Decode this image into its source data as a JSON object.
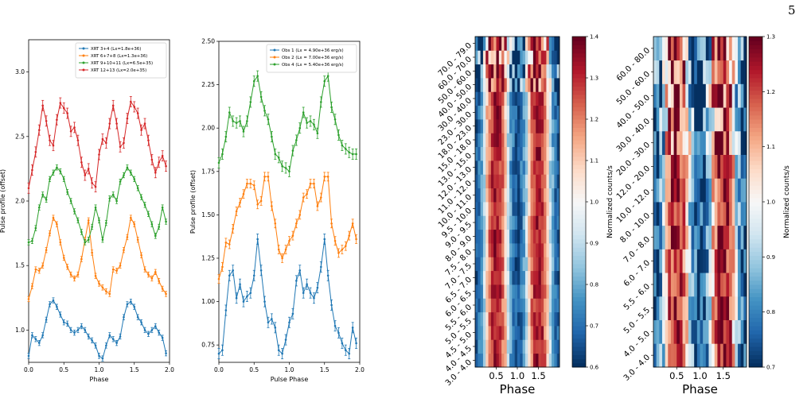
{
  "page": {
    "number": "5"
  },
  "colors": {
    "c1": "#1f77b4",
    "c2": "#ff7f0e",
    "c3": "#2ca02c",
    "c4": "#d62728"
  },
  "chart_data": [
    {
      "type": "line",
      "xlabel": "Phase",
      "ylabel": "Pulse profile (offset)",
      "xlim": [
        0.0,
        2.0
      ],
      "ylim": [
        0.75,
        3.25
      ],
      "xticks": [
        "0.0",
        "0.5",
        "1.0",
        "1.5",
        "2.0"
      ],
      "yticks": [
        "1.0",
        "1.5",
        "2.0",
        "2.5",
        "3.0"
      ],
      "legend_position": "top-right",
      "x": [
        0.0,
        0.05,
        0.1,
        0.15,
        0.2,
        0.25,
        0.3,
        0.35,
        0.4,
        0.45,
        0.5,
        0.55,
        0.6,
        0.65,
        0.7,
        0.75,
        0.8,
        0.85,
        0.9,
        0.95,
        1.0,
        1.05,
        1.1,
        1.15,
        1.2,
        1.25,
        1.3,
        1.35,
        1.4,
        1.45,
        1.5,
        1.55,
        1.6,
        1.65,
        1.7,
        1.75,
        1.8,
        1.85,
        1.9,
        1.95
      ],
      "series": [
        {
          "name": "XRT 3+4 (Lx=1.8e+36)",
          "color": "#1f77b4",
          "err": 0.02,
          "values": [
            0.8,
            0.96,
            0.93,
            0.9,
            0.96,
            1.08,
            1.2,
            1.23,
            1.18,
            1.12,
            1.06,
            1.05,
            1.0,
            0.98,
            1.0,
            1.03,
            1.0,
            0.95,
            0.92,
            0.88,
            0.8,
            0.78,
            0.88,
            0.96,
            0.93,
            0.9,
            0.95,
            1.1,
            1.2,
            1.22,
            1.18,
            1.1,
            1.06,
            1.0,
            0.97,
            1.0,
            1.03,
            0.98,
            0.94,
            0.82
          ]
        },
        {
          "name": "XRT 6+7+8 (Lx=1.3e+36)",
          "color": "#ff7f0e",
          "err": 0.02,
          "values": [
            1.24,
            1.34,
            1.47,
            1.46,
            1.5,
            1.62,
            1.75,
            1.87,
            1.82,
            1.68,
            1.56,
            1.49,
            1.43,
            1.4,
            1.43,
            1.55,
            1.7,
            1.85,
            1.6,
            1.42,
            1.36,
            1.33,
            1.3,
            1.28,
            1.47,
            1.46,
            1.5,
            1.62,
            1.72,
            1.87,
            1.82,
            1.7,
            1.58,
            1.47,
            1.43,
            1.4,
            1.45,
            1.38,
            1.32,
            1.28
          ]
        },
        {
          "name": "XRT 9+10+11 (Lx=6.5e+35)",
          "color": "#2ca02c",
          "err": 0.02,
          "values": [
            1.68,
            1.69,
            1.79,
            1.95,
            2.05,
            2.01,
            2.17,
            2.22,
            2.26,
            2.23,
            2.17,
            2.07,
            2.0,
            1.92,
            1.85,
            1.76,
            1.68,
            1.7,
            1.8,
            1.95,
            1.85,
            1.7,
            1.83,
            2.02,
            2.05,
            2.0,
            2.15,
            2.2,
            2.26,
            2.22,
            2.17,
            2.1,
            2.03,
            1.97,
            1.9,
            1.82,
            1.73,
            1.8,
            1.95,
            1.84
          ]
        },
        {
          "name": "XRT 12+13 (Lx=2.0e+35)",
          "color": "#d62728",
          "err": 0.04,
          "values": [
            2.1,
            2.24,
            2.38,
            2.55,
            2.74,
            2.62,
            2.47,
            2.43,
            2.63,
            2.76,
            2.72,
            2.68,
            2.54,
            2.57,
            2.47,
            2.3,
            2.2,
            2.25,
            2.14,
            2.11,
            2.36,
            2.48,
            2.45,
            2.6,
            2.74,
            2.6,
            2.42,
            2.45,
            2.64,
            2.77,
            2.73,
            2.68,
            2.55,
            2.6,
            2.47,
            2.32,
            2.22,
            2.3,
            2.35,
            2.27
          ]
        }
      ]
    },
    {
      "type": "line",
      "xlabel": "Pulse Phase",
      "ylabel": "Pulse profile (offset)",
      "xlim": [
        0.0,
        2.0
      ],
      "ylim": [
        0.65,
        2.5
      ],
      "xticks": [
        "0.0",
        "0.5",
        "1.0",
        "1.5",
        "2.0"
      ],
      "yticks": [
        "0.75",
        "1.00",
        "1.25",
        "1.50",
        "1.75",
        "2.00",
        "2.25",
        "2.50"
      ],
      "legend_position": "top-right",
      "x": [
        0.0,
        0.05,
        0.1,
        0.15,
        0.2,
        0.25,
        0.3,
        0.35,
        0.4,
        0.45,
        0.5,
        0.55,
        0.6,
        0.65,
        0.7,
        0.75,
        0.8,
        0.85,
        0.9,
        0.95,
        1.0,
        1.05,
        1.1,
        1.15,
        1.2,
        1.25,
        1.3,
        1.35,
        1.4,
        1.45,
        1.5,
        1.55,
        1.6,
        1.65,
        1.7,
        1.75,
        1.8,
        1.85,
        1.9,
        1.95
      ],
      "series": [
        {
          "name": "Obs 1 (Lx = 4.90e+36 erg/s)",
          "color": "#1f77b4",
          "err": 0.03,
          "values": [
            0.7,
            0.72,
            0.95,
            1.15,
            1.18,
            1.02,
            1.1,
            1.0,
            1.03,
            1.05,
            1.15,
            1.36,
            1.18,
            1.0,
            0.88,
            0.9,
            0.85,
            0.72,
            0.7,
            0.78,
            0.88,
            0.93,
            1.12,
            1.18,
            1.05,
            1.1,
            1.05,
            1.02,
            1.08,
            1.2,
            1.36,
            1.15,
            0.98,
            0.86,
            0.82,
            0.76,
            0.72,
            0.7,
            0.85,
            0.76
          ]
        },
        {
          "name": "Obs 2 (Lx = 7.00e+36 erg/s)",
          "color": "#ff7f0e",
          "err": 0.025,
          "values": [
            1.13,
            1.2,
            1.34,
            1.33,
            1.42,
            1.52,
            1.57,
            1.62,
            1.68,
            1.68,
            1.67,
            1.56,
            1.58,
            1.72,
            1.72,
            1.55,
            1.45,
            1.3,
            1.25,
            1.3,
            1.35,
            1.38,
            1.45,
            1.5,
            1.6,
            1.62,
            1.68,
            1.68,
            1.55,
            1.6,
            1.72,
            1.72,
            1.45,
            1.35,
            1.28,
            1.3,
            1.32,
            1.38,
            1.45,
            1.36
          ]
        },
        {
          "name": "Obs 4 (Lx = 5.40e+36 erg/s)",
          "color": "#2ca02c",
          "err": 0.03,
          "values": [
            1.8,
            1.85,
            1.95,
            2.09,
            2.04,
            2.03,
            2.04,
            1.98,
            2.04,
            2.15,
            2.27,
            2.3,
            2.18,
            2.1,
            2.05,
            1.95,
            1.85,
            1.83,
            1.78,
            1.77,
            1.75,
            1.87,
            1.93,
            2.0,
            2.09,
            2.03,
            2.04,
            2.02,
            1.97,
            2.15,
            2.27,
            2.3,
            2.12,
            2.05,
            1.96,
            1.9,
            1.88,
            1.86,
            1.85,
            1.85
          ]
        }
      ]
    },
    {
      "type": "heatmap",
      "xlabel": "Phase",
      "xticks": [
        "0.5",
        "1.0",
        "1.5"
      ],
      "xlim": [
        0.0,
        2.0
      ],
      "colorbar_label": "Normalized counts/s",
      "colorbar_ticks": [
        "0.6",
        "0.7",
        "0.8",
        "0.9",
        "1.0",
        "1.1",
        "1.2",
        "1.3",
        "1.4"
      ],
      "vmin": 0.6,
      "vmax": 1.4,
      "rows_bottom_to_top": [
        "3.0 - 4.0",
        "4.0 - 4.5",
        "4.5 - 5.0",
        "5.0 - 5.5",
        "5.5 - 6.0",
        "6.0 - 6.5",
        "6.5 - 7.0",
        "7.0 - 7.5",
        "7.5 - 8.0",
        "8.0 - 9.0",
        "9.0 - 9.5",
        "9.5 - 10.0",
        "10.0 - 11.0",
        "11.0 - 12.0",
        "12.0 - 13.0",
        "13.0 - 15.0",
        "15.0 - 18.0",
        "18.0 - 23.0",
        "23.0 - 30.0",
        "30.0 - 40.0",
        "40.0 - 50.0",
        "50.0 - 60.0",
        "60.0 - 70.0",
        "70.0 - 79.0"
      ],
      "phase_bins": 32,
      "pattern": "two vertical red bands near phases 0.4-0.6 and 1.4-1.6, blue minima near 0.9 and 1.9; noisy high-energy rows at top"
    },
    {
      "type": "heatmap",
      "xlabel": "Phase",
      "xticks": [
        "0.5",
        "1.0",
        "1.5"
      ],
      "xlim": [
        0.0,
        2.0
      ],
      "colorbar_label": "Normalized counts/s",
      "colorbar_ticks": [
        "0.7",
        "0.8",
        "0.9",
        "1.0",
        "1.1",
        "1.2",
        "1.3"
      ],
      "vmin": 0.7,
      "vmax": 1.3,
      "rows_bottom_to_top": [
        "3.0 - 4.0",
        "4.0 - 5.0",
        "5.0 - 5.5",
        "5.5 - 6.0",
        "6.0 - 7.0",
        "7.0 - 8.0",
        "8.0 - 10.0",
        "10.0 - 12.0",
        "12.0 - 20.0",
        "20.0 - 30.0",
        "30.0 - 40.0",
        "40.0 - 50.0",
        "50.0 - 60.0",
        "60.0 - 80.0"
      ],
      "phase_bins": 32,
      "pattern": "patchy red and blue cells with broad red stripes near phase 0.5 and 1.5; strongly saturated top rows"
    }
  ]
}
